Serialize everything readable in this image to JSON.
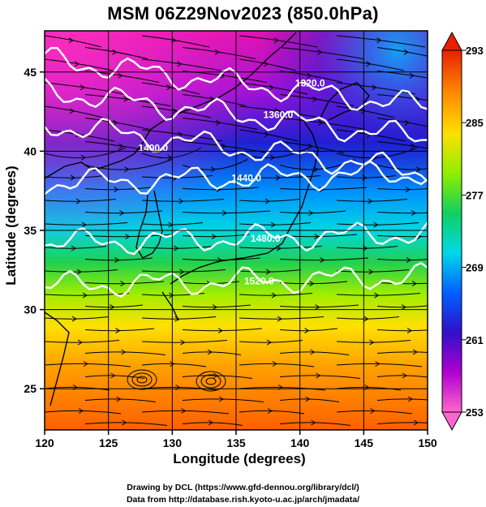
{
  "title": "MSM 06Z29Nov2023 (850.0hPa)",
  "xlabel": "Longitude (degrees)",
  "ylabel": "Latitude  (degrees)",
  "credits": [
    "Drawing by DCL (https://www.gfd-dennou.org/library/dcl/)",
    "Data from http://database.rish.kyoto-u.ac.jp/arch/jmadata/"
  ],
  "map": {
    "lon_range": [
      120,
      150
    ],
    "lat_range": [
      22.4,
      47.6
    ],
    "lon_ticks": [
      "120",
      "125",
      "130",
      "135",
      "140",
      "145",
      "150"
    ],
    "lat_ticks": [
      "25",
      "30",
      "35",
      "40",
      "45"
    ],
    "grid": true
  },
  "colorbar": {
    "min": 253,
    "max": 293,
    "ticks": [
      "253",
      "261",
      "269",
      "277",
      "285",
      "293"
    ],
    "colors": [
      "#ff66cc",
      "#b000d0",
      "#3010c8",
      "#0090ff",
      "#00e0e0",
      "#20d040",
      "#b0f000",
      "#ffe000",
      "#ff8000",
      "#e82000"
    ]
  },
  "contours": [
    {
      "label": "1320.0",
      "lat": 44.3
    },
    {
      "label": "1360.0",
      "lat": 42.3
    },
    {
      "label": "1400.0",
      "lat": 40.2
    },
    {
      "label": "1440.0",
      "lat": 38.3
    },
    {
      "label": "1480.0",
      "lat": 34.5
    },
    {
      "label": "1520.0",
      "lat": 31.8
    }
  ]
}
